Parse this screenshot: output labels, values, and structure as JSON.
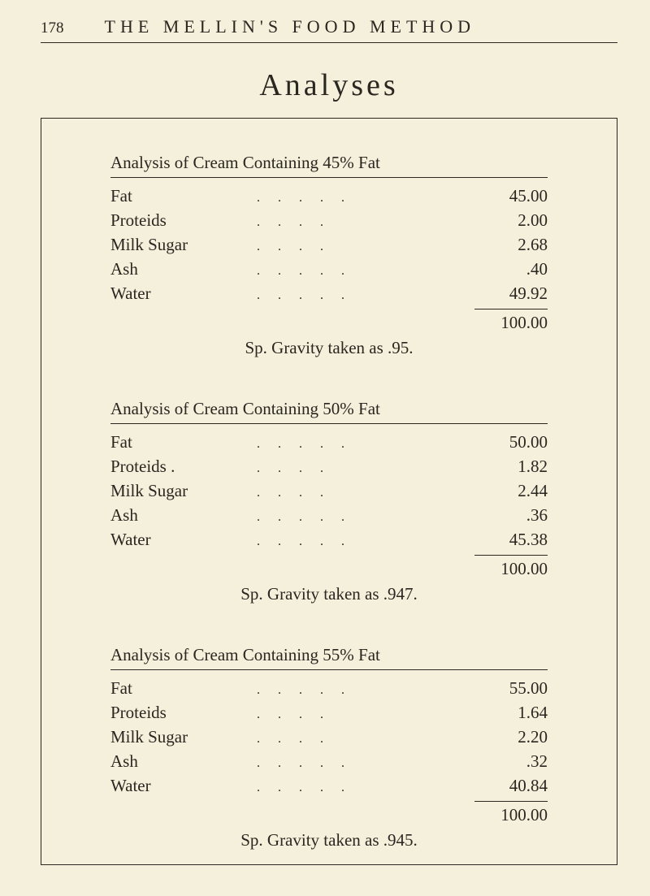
{
  "page_number": "178",
  "book_title": "THE MELLIN'S FOOD METHOD",
  "main_title": "Analyses",
  "colors": {
    "background": "#f5f0dc",
    "text": "#2a2620",
    "border": "#2a2620"
  },
  "fonts": {
    "body_family": "Georgia, Times New Roman, serif",
    "book_title_size": 22,
    "main_title_size": 38,
    "row_size": 21
  },
  "analyses": [
    {
      "title": "Analysis of Cream Containing 45% Fat",
      "rows": [
        {
          "label": "Fat",
          "dots": ".....",
          "value": "45.00"
        },
        {
          "label": "Proteids",
          "dots": "....",
          "value": "2.00"
        },
        {
          "label": "Milk Sugar",
          "dots": "....",
          "value": "2.68"
        },
        {
          "label": "Ash",
          "dots": ".....",
          "value": ".40"
        },
        {
          "label": "Water",
          "dots": ".....",
          "value": "49.92"
        }
      ],
      "total": "100.00",
      "gravity": "Sp. Gravity taken as .95."
    },
    {
      "title": "Analysis of Cream Containing 50% Fat",
      "rows": [
        {
          "label": "Fat",
          "dots": ".....",
          "value": "50.00"
        },
        {
          "label": "Proteids .",
          "dots": "....",
          "value": "1.82"
        },
        {
          "label": "Milk Sugar",
          "dots": "....",
          "value": "2.44"
        },
        {
          "label": "Ash",
          "dots": ".....",
          "value": ".36"
        },
        {
          "label": "Water",
          "dots": ".....",
          "value": "45.38"
        }
      ],
      "total": "100.00",
      "gravity": "Sp. Gravity taken as .947."
    },
    {
      "title": "Analysis of Cream Containing 55% Fat",
      "rows": [
        {
          "label": "Fat",
          "dots": ".....",
          "value": "55.00"
        },
        {
          "label": "Proteids",
          "dots": "....",
          "value": "1.64"
        },
        {
          "label": "Milk Sugar",
          "dots": "....",
          "value": "2.20"
        },
        {
          "label": "Ash",
          "dots": ".....",
          "value": ".32"
        },
        {
          "label": "Water",
          "dots": ".....",
          "value": "40.84"
        }
      ],
      "total": "100.00",
      "gravity": "Sp. Gravity taken as .945."
    }
  ]
}
